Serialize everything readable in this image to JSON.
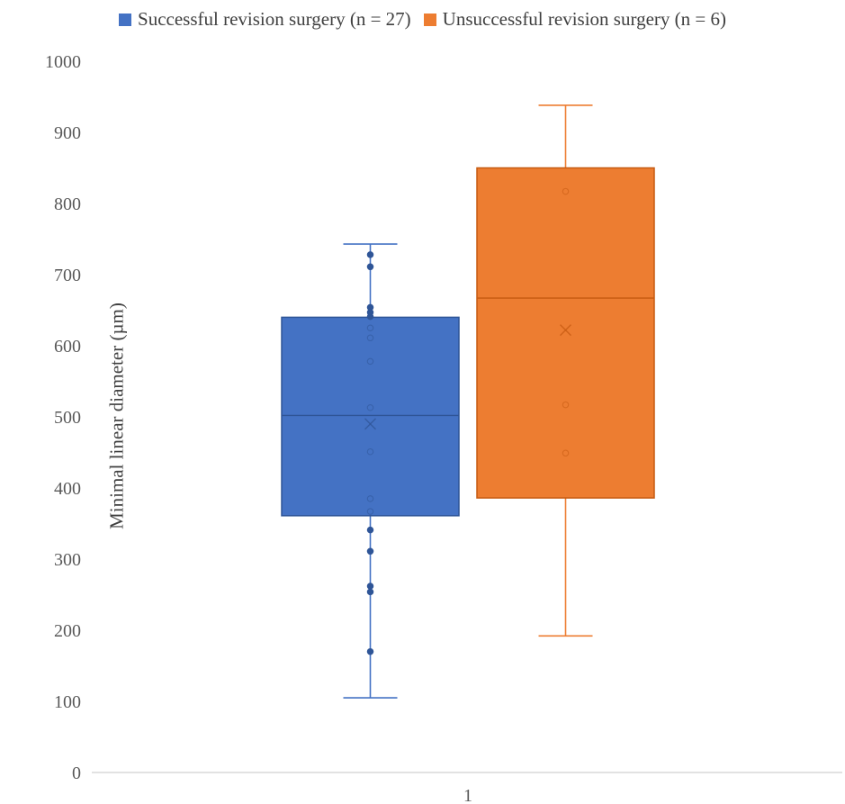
{
  "chart_data": {
    "type": "box",
    "title": "",
    "xlabel": "",
    "ylabel": "Minimal linear diameter (µm)",
    "ylim": [
      0,
      1000
    ],
    "yticks": [
      "0",
      "100",
      "200",
      "300",
      "400",
      "500",
      "600",
      "700",
      "800",
      "900",
      "1000"
    ],
    "categories": [
      "1"
    ],
    "grid": false,
    "legend_position": "top",
    "series": [
      {
        "name": "Successful revision surgery (n = 27)",
        "color": "#4472C4",
        "whisker_low": 105,
        "q1": 361,
        "median": 502,
        "q3": 640,
        "whisker_high": 743,
        "mean": 490,
        "points": [
          170,
          254,
          262,
          311,
          341,
          367,
          385,
          451,
          513,
          578,
          611,
          625,
          641,
          647,
          654,
          711,
          728
        ]
      },
      {
        "name": "Unsuccessful revision surgery (n = 6)",
        "color": "#ED7D31",
        "whisker_low": 192,
        "q1": 386,
        "median": 667,
        "q3": 850,
        "whisker_high": 938,
        "mean": 622,
        "points": [
          449,
          517,
          817
        ]
      }
    ]
  }
}
